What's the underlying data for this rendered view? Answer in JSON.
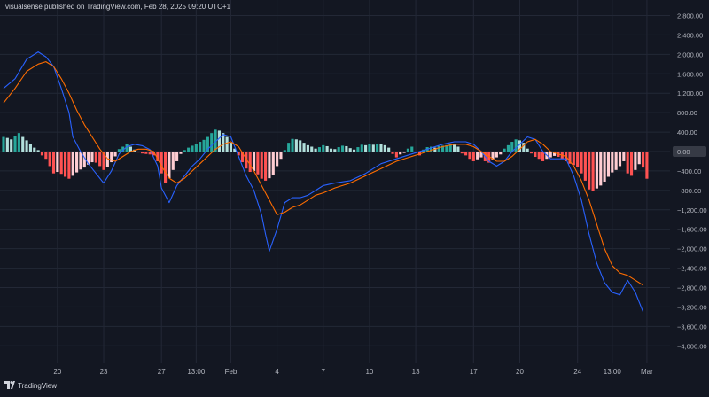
{
  "header": {
    "publish_note": "visualsense published on TradingView.com, Feb 28, 2025 09:20 UTC+1"
  },
  "footer": {
    "brand_text": "TradingView",
    "brand_icon": "tradingview-logo-icon"
  },
  "colors": {
    "background": "#131722",
    "grid": "#232836",
    "macd_line": "#2962ff",
    "signal_line": "#ff6d00",
    "hist_pos_strong": "#26a69a",
    "hist_pos_weak": "#b2dfdb",
    "hist_neg_strong": "#ff5252",
    "hist_neg_weak": "#ffcdd2",
    "axis_text": "#b2b5be",
    "zero_label_bg": "#363a45"
  },
  "chart_data": {
    "type": "line",
    "title": "",
    "xlabel": "",
    "ylabel": "",
    "ylim": [
      -4250,
      2900
    ],
    "y_ticks": [
      2800,
      2400,
      2000,
      1600,
      1200,
      800,
      400,
      0,
      -400,
      -800,
      -1200,
      -1600,
      -2000,
      -2400,
      -2800,
      -3200,
      -3600,
      -4000
    ],
    "y_tick_labels": [
      "2,800.00",
      "2,400.00",
      "2,000.00",
      "1,600.00",
      "1,200.00",
      "800.00",
      "400.00",
      "0.00",
      "−400.00",
      "−800.00",
      "−1,200.00",
      "−1,600.00",
      "−2,000.00",
      "−2,400.00",
      "−2,800.00",
      "−3,200.00",
      "−3,600.00",
      "−4,000.00"
    ],
    "x_range": [
      0,
      173
    ],
    "x_ticks": [
      {
        "x": 14,
        "label": "20"
      },
      {
        "x": 26,
        "label": "23"
      },
      {
        "x": 41,
        "label": "27"
      },
      {
        "x": 50,
        "label": "13:00"
      },
      {
        "x": 59,
        "label": "Feb"
      },
      {
        "x": 71,
        "label": "4"
      },
      {
        "x": 83,
        "label": "7"
      },
      {
        "x": 95,
        "label": "10"
      },
      {
        "x": 107,
        "label": "13"
      },
      {
        "x": 122,
        "label": "17"
      },
      {
        "x": 134,
        "label": "20"
      },
      {
        "x": 149,
        "label": "24"
      },
      {
        "x": 158,
        "label": "13:00"
      },
      {
        "x": 167,
        "label": "Mar"
      }
    ],
    "grid": true,
    "series": [
      {
        "role": "macd",
        "color": "#2962ff",
        "points": [
          [
            0,
            1300
          ],
          [
            3,
            1500
          ],
          [
            6,
            1900
          ],
          [
            9,
            2050
          ],
          [
            11,
            1950
          ],
          [
            13,
            1750
          ],
          [
            15,
            1300
          ],
          [
            17,
            800
          ],
          [
            18,
            300
          ],
          [
            20,
            0
          ],
          [
            22,
            -250
          ],
          [
            24,
            -450
          ],
          [
            26,
            -650
          ],
          [
            28,
            -400
          ],
          [
            30,
            -50
          ],
          [
            32,
            100
          ],
          [
            34,
            150
          ],
          [
            36,
            120
          ],
          [
            38,
            40
          ],
          [
            40,
            -300
          ],
          [
            41,
            -750
          ],
          [
            43,
            -1050
          ],
          [
            45,
            -700
          ],
          [
            47,
            -500
          ],
          [
            49,
            -300
          ],
          [
            51,
            -150
          ],
          [
            53,
            50
          ],
          [
            55,
            200
          ],
          [
            57,
            350
          ],
          [
            59,
            300
          ],
          [
            61,
            -100
          ],
          [
            63,
            -500
          ],
          [
            65,
            -800
          ],
          [
            67,
            -1300
          ],
          [
            68,
            -1700
          ],
          [
            69,
            -2050
          ],
          [
            71,
            -1600
          ],
          [
            73,
            -1050
          ],
          [
            75,
            -950
          ],
          [
            77,
            -950
          ],
          [
            79,
            -900
          ],
          [
            81,
            -800
          ],
          [
            83,
            -700
          ],
          [
            86,
            -650
          ],
          [
            90,
            -600
          ],
          [
            94,
            -450
          ],
          [
            98,
            -250
          ],
          [
            102,
            -150
          ],
          [
            106,
            -50
          ],
          [
            110,
            50
          ],
          [
            114,
            150
          ],
          [
            117,
            200
          ],
          [
            120,
            200
          ],
          [
            122,
            150
          ],
          [
            124,
            0
          ],
          [
            126,
            -200
          ],
          [
            128,
            -300
          ],
          [
            130,
            -200
          ],
          [
            132,
            0
          ],
          [
            134,
            150
          ],
          [
            136,
            300
          ],
          [
            138,
            250
          ],
          [
            140,
            0
          ],
          [
            142,
            -150
          ],
          [
            146,
            -150
          ],
          [
            148,
            -500
          ],
          [
            150,
            -1000
          ],
          [
            152,
            -1700
          ],
          [
            154,
            -2300
          ],
          [
            156,
            -2700
          ],
          [
            158,
            -2900
          ],
          [
            160,
            -2950
          ],
          [
            162,
            -2650
          ],
          [
            164,
            -2900
          ],
          [
            166,
            -3300
          ]
        ]
      },
      {
        "role": "signal",
        "color": "#ff6d00",
        "points": [
          [
            0,
            1000
          ],
          [
            3,
            1300
          ],
          [
            6,
            1650
          ],
          [
            9,
            1800
          ],
          [
            11,
            1850
          ],
          [
            13,
            1750
          ],
          [
            15,
            1500
          ],
          [
            17,
            1200
          ],
          [
            19,
            850
          ],
          [
            21,
            550
          ],
          [
            23,
            300
          ],
          [
            25,
            50
          ],
          [
            27,
            -150
          ],
          [
            29,
            -200
          ],
          [
            31,
            -100
          ],
          [
            33,
            0
          ],
          [
            35,
            50
          ],
          [
            37,
            50
          ],
          [
            39,
            0
          ],
          [
            41,
            -300
          ],
          [
            43,
            -550
          ],
          [
            45,
            -650
          ],
          [
            47,
            -550
          ],
          [
            49,
            -400
          ],
          [
            51,
            -250
          ],
          [
            53,
            -100
          ],
          [
            55,
            50
          ],
          [
            57,
            150
          ],
          [
            59,
            200
          ],
          [
            61,
            100
          ],
          [
            63,
            -150
          ],
          [
            65,
            -400
          ],
          [
            67,
            -700
          ],
          [
            69,
            -1000
          ],
          [
            71,
            -1300
          ],
          [
            73,
            -1250
          ],
          [
            75,
            -1150
          ],
          [
            77,
            -1100
          ],
          [
            79,
            -1000
          ],
          [
            81,
            -900
          ],
          [
            83,
            -850
          ],
          [
            86,
            -750
          ],
          [
            90,
            -650
          ],
          [
            94,
            -500
          ],
          [
            98,
            -350
          ],
          [
            102,
            -200
          ],
          [
            106,
            -100
          ],
          [
            110,
            0
          ],
          [
            114,
            100
          ],
          [
            117,
            150
          ],
          [
            120,
            150
          ],
          [
            122,
            100
          ],
          [
            124,
            0
          ],
          [
            126,
            -100
          ],
          [
            128,
            -200
          ],
          [
            130,
            -200
          ],
          [
            132,
            -100
          ],
          [
            134,
            50
          ],
          [
            136,
            200
          ],
          [
            138,
            250
          ],
          [
            140,
            150
          ],
          [
            142,
            0
          ],
          [
            146,
            -100
          ],
          [
            148,
            -300
          ],
          [
            150,
            -600
          ],
          [
            152,
            -1000
          ],
          [
            154,
            -1500
          ],
          [
            156,
            -2000
          ],
          [
            158,
            -2350
          ],
          [
            160,
            -2500
          ],
          [
            162,
            -2550
          ],
          [
            164,
            -2650
          ],
          [
            166,
            -2750
          ]
        ]
      }
    ],
    "histogram": [
      {
        "x": 0,
        "v": 300
      },
      {
        "x": 1,
        "v": 280
      },
      {
        "x": 2,
        "v": 250
      },
      {
        "x": 3,
        "v": 320
      },
      {
        "x": 4,
        "v": 380
      },
      {
        "x": 5,
        "v": 300
      },
      {
        "x": 6,
        "v": 230
      },
      {
        "x": 7,
        "v": 150
      },
      {
        "x": 8,
        "v": 80
      },
      {
        "x": 9,
        "v": 30
      },
      {
        "x": 10,
        "v": -80
      },
      {
        "x": 11,
        "v": -150
      },
      {
        "x": 12,
        "v": -300
      },
      {
        "x": 13,
        "v": -450
      },
      {
        "x": 14,
        "v": -420
      },
      {
        "x": 15,
        "v": -460
      },
      {
        "x": 16,
        "v": -520
      },
      {
        "x": 17,
        "v": -560
      },
      {
        "x": 18,
        "v": -500
      },
      {
        "x": 19,
        "v": -430
      },
      {
        "x": 20,
        "v": -370
      },
      {
        "x": 21,
        "v": -330
      },
      {
        "x": 22,
        "v": -270
      },
      {
        "x": 23,
        "v": -220
      },
      {
        "x": 24,
        "v": -230
      },
      {
        "x": 25,
        "v": -300
      },
      {
        "x": 26,
        "v": -380
      },
      {
        "x": 27,
        "v": -320
      },
      {
        "x": 28,
        "v": -220
      },
      {
        "x": 29,
        "v": -100
      },
      {
        "x": 30,
        "v": 50
      },
      {
        "x": 31,
        "v": 100
      },
      {
        "x": 32,
        "v": 150
      },
      {
        "x": 33,
        "v": 100
      },
      {
        "x": 34,
        "v": 40
      },
      {
        "x": 35,
        "v": -20
      },
      {
        "x": 36,
        "v": -40
      },
      {
        "x": 37,
        "v": -50
      },
      {
        "x": 38,
        "v": -60
      },
      {
        "x": 39,
        "v": -80
      },
      {
        "x": 40,
        "v": -200
      },
      {
        "x": 41,
        "v": -450
      },
      {
        "x": 42,
        "v": -650
      },
      {
        "x": 43,
        "v": -550
      },
      {
        "x": 44,
        "v": -380
      },
      {
        "x": 45,
        "v": -200
      },
      {
        "x": 46,
        "v": -50
      },
      {
        "x": 47,
        "v": 30
      },
      {
        "x": 48,
        "v": 80
      },
      {
        "x": 49,
        "v": 120
      },
      {
        "x": 50,
        "v": 160
      },
      {
        "x": 51,
        "v": 200
      },
      {
        "x": 52,
        "v": 240
      },
      {
        "x": 53,
        "v": 300
      },
      {
        "x": 54,
        "v": 380
      },
      {
        "x": 55,
        "v": 450
      },
      {
        "x": 56,
        "v": 430
      },
      {
        "x": 57,
        "v": 380
      },
      {
        "x": 58,
        "v": 300
      },
      {
        "x": 59,
        "v": 180
      },
      {
        "x": 60,
        "v": 60
      },
      {
        "x": 61,
        "v": -80
      },
      {
        "x": 62,
        "v": -220
      },
      {
        "x": 63,
        "v": -350
      },
      {
        "x": 64,
        "v": -420
      },
      {
        "x": 65,
        "v": -400
      },
      {
        "x": 66,
        "v": -470
      },
      {
        "x": 67,
        "v": -560
      },
      {
        "x": 68,
        "v": -600
      },
      {
        "x": 69,
        "v": -550
      },
      {
        "x": 70,
        "v": -480
      },
      {
        "x": 71,
        "v": -300
      },
      {
        "x": 72,
        "v": -150
      },
      {
        "x": 73,
        "v": 30
      },
      {
        "x": 74,
        "v": 180
      },
      {
        "x": 75,
        "v": 260
      },
      {
        "x": 76,
        "v": 250
      },
      {
        "x": 77,
        "v": 230
      },
      {
        "x": 78,
        "v": 180
      },
      {
        "x": 79,
        "v": 130
      },
      {
        "x": 80,
        "v": 100
      },
      {
        "x": 81,
        "v": 60
      },
      {
        "x": 82,
        "v": 90
      },
      {
        "x": 83,
        "v": 130
      },
      {
        "x": 84,
        "v": 110
      },
      {
        "x": 85,
        "v": 60
      },
      {
        "x": 86,
        "v": 50
      },
      {
        "x": 87,
        "v": 90
      },
      {
        "x": 88,
        "v": 120
      },
      {
        "x": 89,
        "v": 110
      },
      {
        "x": 90,
        "v": 70
      },
      {
        "x": 91,
        "v": 40
      },
      {
        "x": 92,
        "v": 90
      },
      {
        "x": 93,
        "v": 140
      },
      {
        "x": 94,
        "v": 130
      },
      {
        "x": 95,
        "v": 150
      },
      {
        "x": 96,
        "v": 140
      },
      {
        "x": 97,
        "v": 160
      },
      {
        "x": 98,
        "v": 150
      },
      {
        "x": 99,
        "v": 130
      },
      {
        "x": 100,
        "v": 80
      },
      {
        "x": 101,
        "v": -50
      },
      {
        "x": 102,
        "v": -120
      },
      {
        "x": 103,
        "v": -60
      },
      {
        "x": 104,
        "v": -30
      },
      {
        "x": 105,
        "v": 60
      },
      {
        "x": 106,
        "v": 100
      },
      {
        "x": 107,
        "v": -30
      },
      {
        "x": 108,
        "v": -80
      },
      {
        "x": 109,
        "v": 40
      },
      {
        "x": 110,
        "v": 90
      },
      {
        "x": 111,
        "v": 100
      },
      {
        "x": 112,
        "v": 80
      },
      {
        "x": 113,
        "v": 110
      },
      {
        "x": 114,
        "v": 120
      },
      {
        "x": 115,
        "v": 130
      },
      {
        "x": 116,
        "v": 150
      },
      {
        "x": 117,
        "v": 140
      },
      {
        "x": 118,
        "v": 100
      },
      {
        "x": 119,
        "v": -40
      },
      {
        "x": 120,
        "v": -80
      },
      {
        "x": 121,
        "v": -150
      },
      {
        "x": 122,
        "v": -200
      },
      {
        "x": 123,
        "v": -160
      },
      {
        "x": 124,
        "v": -120
      },
      {
        "x": 125,
        "v": -200
      },
      {
        "x": 126,
        "v": -230
      },
      {
        "x": 127,
        "v": -180
      },
      {
        "x": 128,
        "v": -120
      },
      {
        "x": 129,
        "v": -60
      },
      {
        "x": 130,
        "v": 60
      },
      {
        "x": 131,
        "v": 130
      },
      {
        "x": 132,
        "v": 200
      },
      {
        "x": 133,
        "v": 250
      },
      {
        "x": 134,
        "v": 230
      },
      {
        "x": 135,
        "v": 180
      },
      {
        "x": 136,
        "v": 60
      },
      {
        "x": 137,
        "v": -40
      },
      {
        "x": 138,
        "v": -110
      },
      {
        "x": 139,
        "v": -150
      },
      {
        "x": 140,
        "v": -200
      },
      {
        "x": 141,
        "v": -150
      },
      {
        "x": 142,
        "v": -120
      },
      {
        "x": 143,
        "v": -90
      },
      {
        "x": 144,
        "v": -110
      },
      {
        "x": 145,
        "v": -150
      },
      {
        "x": 146,
        "v": -200
      },
      {
        "x": 147,
        "v": -250
      },
      {
        "x": 148,
        "v": -280
      },
      {
        "x": 149,
        "v": -320
      },
      {
        "x": 150,
        "v": -450
      },
      {
        "x": 151,
        "v": -600
      },
      {
        "x": 152,
        "v": -780
      },
      {
        "x": 153,
        "v": -820
      },
      {
        "x": 154,
        "v": -760
      },
      {
        "x": 155,
        "v": -700
      },
      {
        "x": 156,
        "v": -620
      },
      {
        "x": 157,
        "v": -520
      },
      {
        "x": 158,
        "v": -430
      },
      {
        "x": 159,
        "v": -380
      },
      {
        "x": 160,
        "v": -300
      },
      {
        "x": 161,
        "v": -200
      },
      {
        "x": 162,
        "v": -450
      },
      {
        "x": 163,
        "v": -500
      },
      {
        "x": 164,
        "v": -380
      },
      {
        "x": 165,
        "v": -260
      },
      {
        "x": 166,
        "v": -330
      },
      {
        "x": 167,
        "v": -560
      }
    ]
  }
}
